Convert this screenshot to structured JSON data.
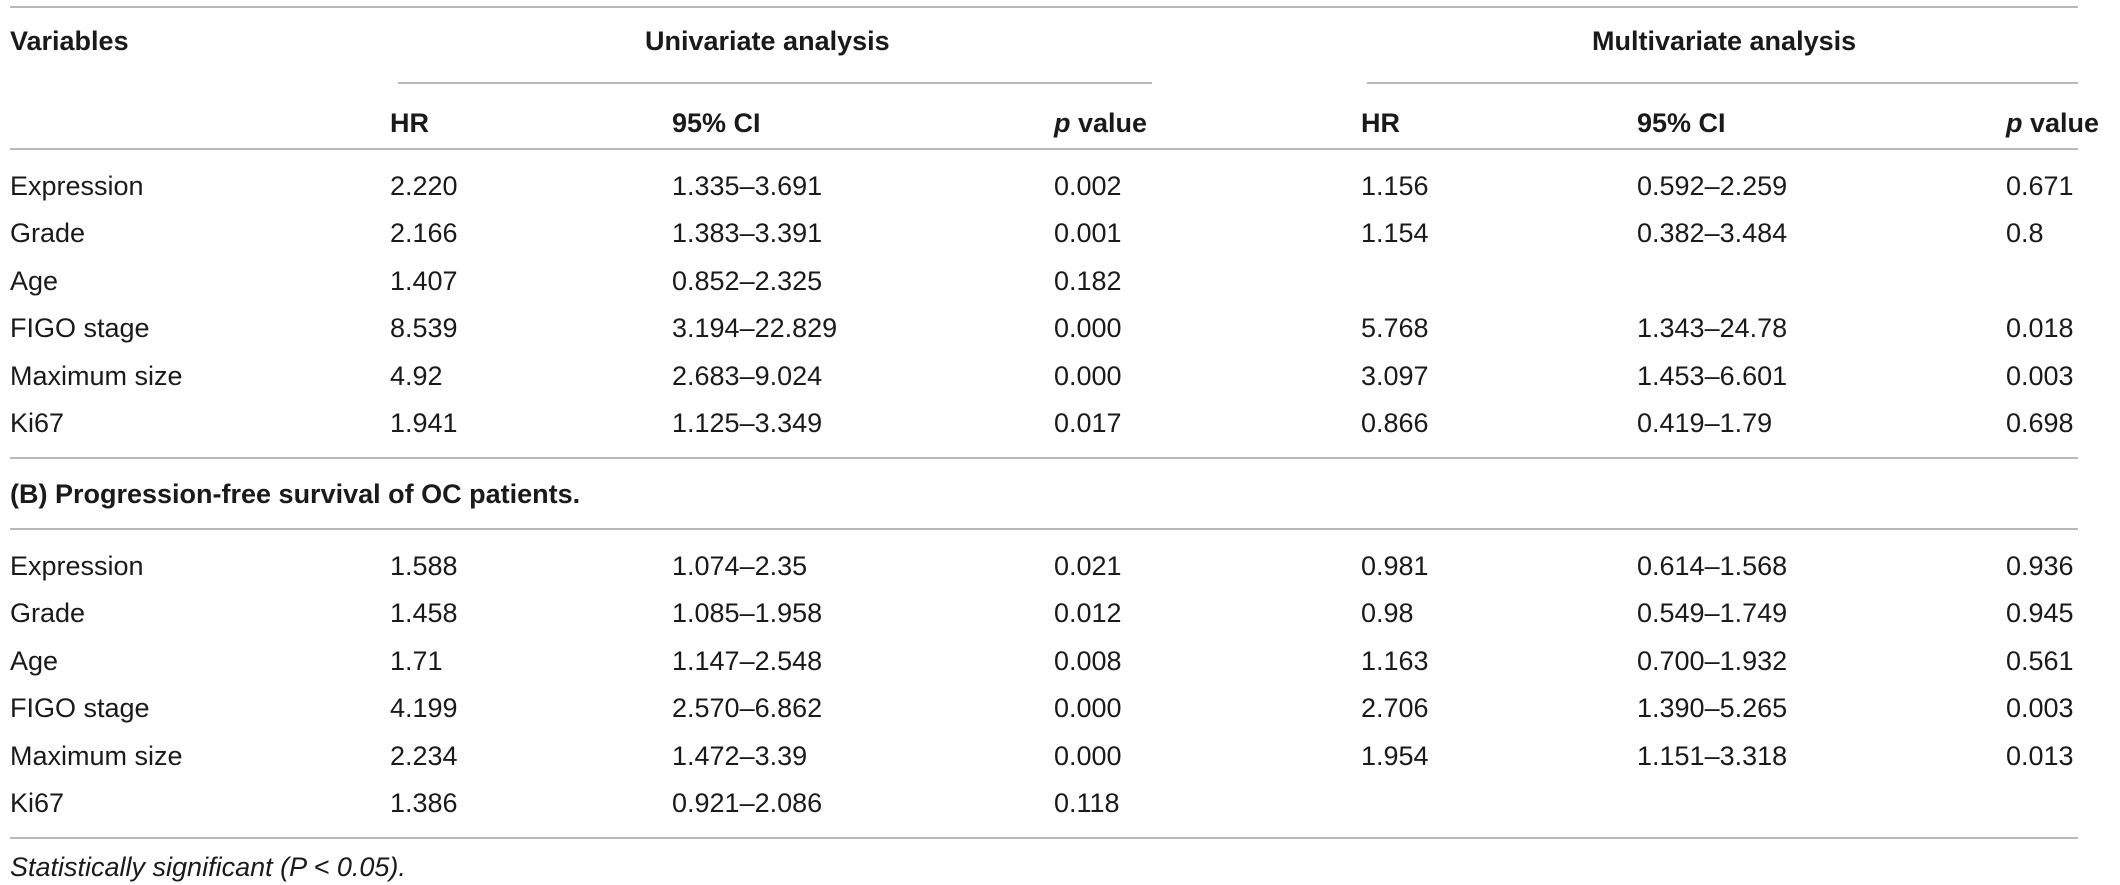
{
  "header": {
    "variables": "Variables",
    "univariate": "Univariate analysis",
    "multivariate": "Multivariate analysis",
    "columns": {
      "hr": "HR",
      "ci": "95% CI",
      "p_italic": "p",
      "p_rest": " value"
    }
  },
  "section_b_title": "(B) Progression-free survival of OC patients.",
  "section_a_rows": [
    {
      "variable": "Expression",
      "uni_hr": "2.220",
      "uni_ci": "1.335–3.691",
      "uni_p": "0.002",
      "multi_hr": "1.156",
      "multi_ci": "0.592–2.259",
      "multi_p": "0.671"
    },
    {
      "variable": "Grade",
      "uni_hr": "2.166",
      "uni_ci": "1.383–3.391",
      "uni_p": "0.001",
      "multi_hr": "1.154",
      "multi_ci": "0.382–3.484",
      "multi_p": "0.8"
    },
    {
      "variable": "Age",
      "uni_hr": "1.407",
      "uni_ci": "0.852–2.325",
      "uni_p": "0.182",
      "multi_hr": "",
      "multi_ci": "",
      "multi_p": ""
    },
    {
      "variable": "FIGO stage",
      "uni_hr": "8.539",
      "uni_ci": "3.194–22.829",
      "uni_p": "0.000",
      "multi_hr": "5.768",
      "multi_ci": "1.343–24.78",
      "multi_p": "0.018"
    },
    {
      "variable": "Maximum size",
      "uni_hr": "4.92",
      "uni_ci": "2.683–9.024",
      "uni_p": "0.000",
      "multi_hr": "3.097",
      "multi_ci": "1.453–6.601",
      "multi_p": "0.003"
    },
    {
      "variable": "Ki67",
      "uni_hr": "1.941",
      "uni_ci": "1.125–3.349",
      "uni_p": "0.017",
      "multi_hr": "0.866",
      "multi_ci": "0.419–1.79",
      "multi_p": "0.698"
    }
  ],
  "section_b_rows": [
    {
      "variable": "Expression",
      "uni_hr": "1.588",
      "uni_ci": "1.074–2.35",
      "uni_p": "0.021",
      "multi_hr": "0.981",
      "multi_ci": "0.614–1.568",
      "multi_p": "0.936"
    },
    {
      "variable": "Grade",
      "uni_hr": "1.458",
      "uni_ci": "1.085–1.958",
      "uni_p": "0.012",
      "multi_hr": "0.98",
      "multi_ci": "0.549–1.749",
      "multi_p": "0.945"
    },
    {
      "variable": "Age",
      "uni_hr": "1.71",
      "uni_ci": "1.147–2.548",
      "uni_p": "0.008",
      "multi_hr": "1.163",
      "multi_ci": "0.700–1.932",
      "multi_p": "0.561"
    },
    {
      "variable": "FIGO stage",
      "uni_hr": "4.199",
      "uni_ci": "2.570–6.862",
      "uni_p": "0.000",
      "multi_hr": "2.706",
      "multi_ci": "1.390–5.265",
      "multi_p": "0.003"
    },
    {
      "variable": "Maximum size",
      "uni_hr": "2.234",
      "uni_ci": "1.472–3.39",
      "uni_p": "0.000",
      "multi_hr": "1.954",
      "multi_ci": "1.151–3.318",
      "multi_p": "0.013"
    },
    {
      "variable": "Ki67",
      "uni_hr": "1.386",
      "uni_ci": "0.921–2.086",
      "uni_p": "0.118",
      "multi_hr": "",
      "multi_ci": "",
      "multi_p": ""
    }
  ],
  "footnote": "Statistically significant (P < 0.05)."
}
